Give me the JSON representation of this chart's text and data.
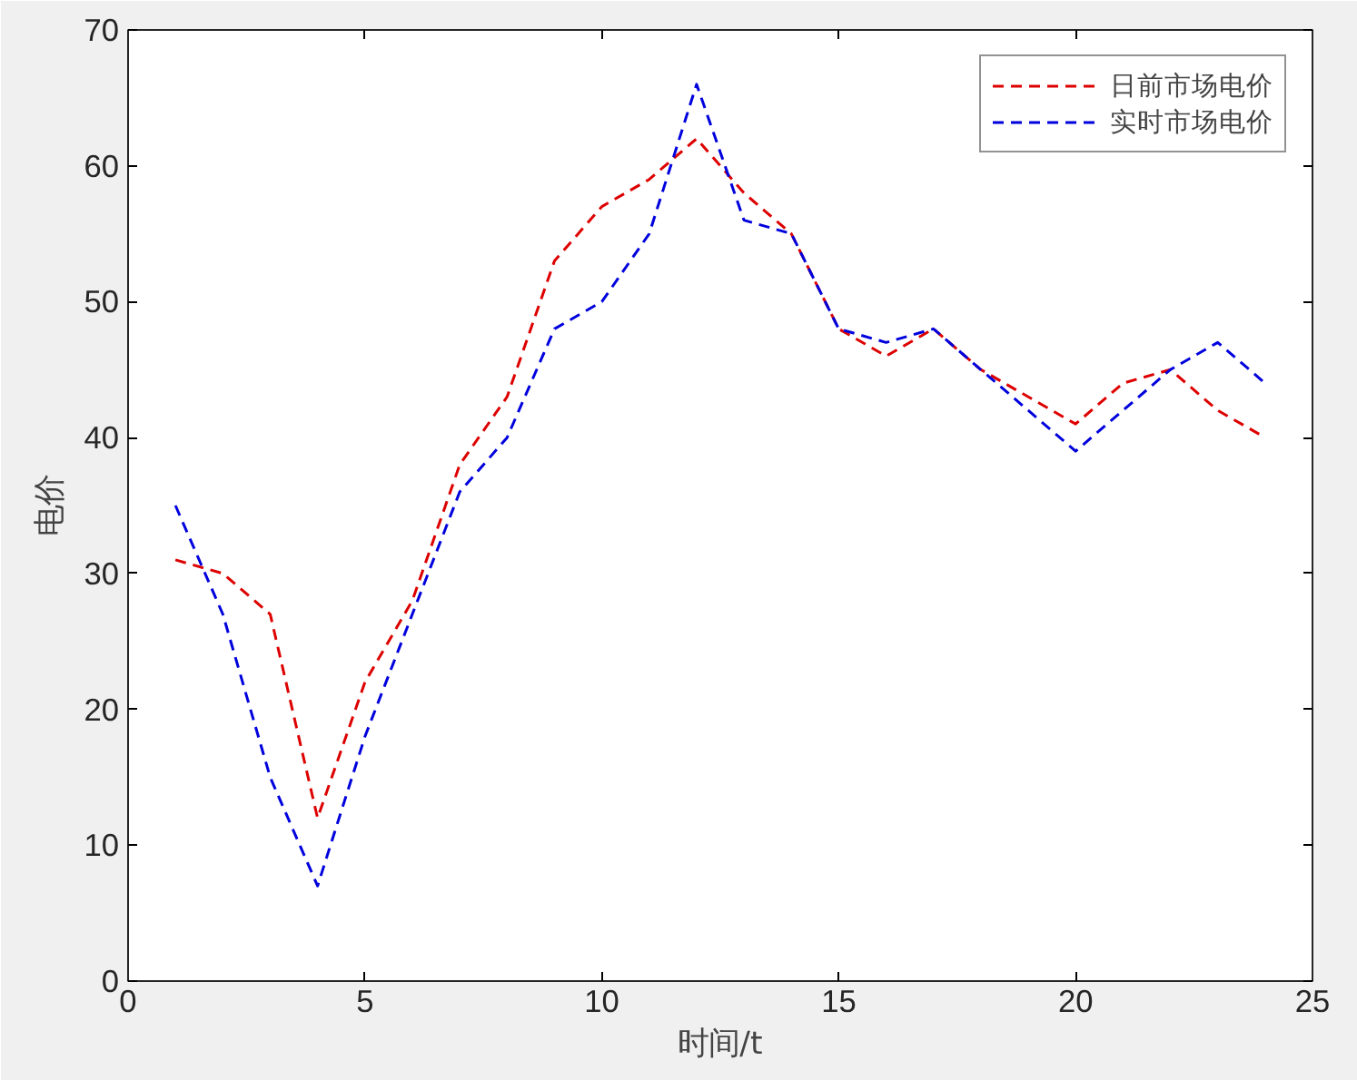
{
  "chart_data": {
    "type": "line",
    "xlabel": "时间/t",
    "ylabel": "电价",
    "x": [
      1,
      2,
      3,
      4,
      5,
      6,
      7,
      8,
      9,
      10,
      11,
      12,
      13,
      14,
      15,
      16,
      17,
      18,
      19,
      20,
      21,
      22,
      23,
      24
    ],
    "series": [
      {
        "name": "日前市场电价",
        "color": "#dd0000",
        "values": [
          31,
          30,
          27,
          12,
          22,
          28,
          38,
          43,
          53,
          57,
          59,
          62,
          58,
          55,
          48,
          46,
          48,
          45,
          43,
          41,
          44,
          45,
          42,
          40
        ]
      },
      {
        "name": "实时市场电价",
        "color": "#0000dd",
        "values": [
          35,
          27,
          15,
          7,
          18,
          27,
          36,
          40,
          48,
          50,
          55,
          66,
          56,
          55,
          48,
          47,
          48,
          45,
          42,
          39,
          42,
          45,
          47,
          44
        ]
      }
    ],
    "xlim": [
      0,
      25
    ],
    "xticks": [
      0,
      5,
      10,
      15,
      20,
      25
    ],
    "ylim": [
      0,
      70
    ],
    "yticks": [
      0,
      10,
      20,
      30,
      40,
      50,
      60,
      70
    ],
    "grid": false,
    "legend": "top right",
    "line_style": "dashed",
    "marker": "none"
  }
}
